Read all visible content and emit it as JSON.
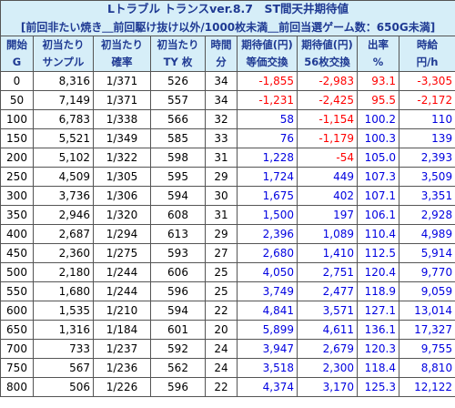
{
  "title": "Lトラブル トランスver.8.7　ST間天井期待値",
  "subtitle": "[前回非たい焼き＿前回駆け抜け以外/1000枚未満＿前回当選ゲーム数：650G未満]",
  "headers_row1": [
    "開始",
    "初当たり",
    "初当たり",
    "初当たり",
    "時間",
    "期待値(円)",
    "期待値(円)",
    "出率",
    "時給"
  ],
  "headers_row2": [
    "G",
    "サンプル",
    "確率",
    "TY 枚",
    "分",
    "等価交換",
    "56枚交換",
    "%",
    "円/h"
  ],
  "rows": [
    {
      "g": "0",
      "sample": "8,316",
      "prob": "1/371",
      "ty": "526",
      "min": "34",
      "eq": "-1,855",
      "ex56": "-2,983",
      "rate": "93.1",
      "hourly": "-3,305"
    },
    {
      "g": "50",
      "sample": "7,149",
      "prob": "1/371",
      "ty": "557",
      "min": "34",
      "eq": "-1,231",
      "ex56": "-2,425",
      "rate": "95.5",
      "hourly": "-2,172"
    },
    {
      "g": "100",
      "sample": "6,783",
      "prob": "1/338",
      "ty": "566",
      "min": "32",
      "eq": "58",
      "ex56": "-1,154",
      "rate": "100.2",
      "hourly": "110"
    },
    {
      "g": "150",
      "sample": "5,521",
      "prob": "1/349",
      "ty": "585",
      "min": "33",
      "eq": "76",
      "ex56": "-1,179",
      "rate": "100.3",
      "hourly": "139"
    },
    {
      "g": "200",
      "sample": "5,102",
      "prob": "1/322",
      "ty": "598",
      "min": "31",
      "eq": "1,228",
      "ex56": "-54",
      "rate": "105.0",
      "hourly": "2,393"
    },
    {
      "g": "250",
      "sample": "4,509",
      "prob": "1/305",
      "ty": "595",
      "min": "29",
      "eq": "1,724",
      "ex56": "449",
      "rate": "107.3",
      "hourly": "3,509"
    },
    {
      "g": "300",
      "sample": "3,736",
      "prob": "1/306",
      "ty": "594",
      "min": "30",
      "eq": "1,675",
      "ex56": "402",
      "rate": "107.1",
      "hourly": "3,351"
    },
    {
      "g": "350",
      "sample": "2,946",
      "prob": "1/320",
      "ty": "608",
      "min": "31",
      "eq": "1,500",
      "ex56": "197",
      "rate": "106.1",
      "hourly": "2,928"
    },
    {
      "g": "400",
      "sample": "2,687",
      "prob": "1/294",
      "ty": "613",
      "min": "29",
      "eq": "2,396",
      "ex56": "1,089",
      "rate": "110.4",
      "hourly": "4,989"
    },
    {
      "g": "450",
      "sample": "2,360",
      "prob": "1/275",
      "ty": "593",
      "min": "27",
      "eq": "2,680",
      "ex56": "1,410",
      "rate": "112.5",
      "hourly": "5,914"
    },
    {
      "g": "500",
      "sample": "2,180",
      "prob": "1/244",
      "ty": "606",
      "min": "25",
      "eq": "4,050",
      "ex56": "2,751",
      "rate": "120.4",
      "hourly": "9,770"
    },
    {
      "g": "550",
      "sample": "1,680",
      "prob": "1/244",
      "ty": "596",
      "min": "25",
      "eq": "3,749",
      "ex56": "2,477",
      "rate": "118.9",
      "hourly": "9,059"
    },
    {
      "g": "600",
      "sample": "1,535",
      "prob": "1/210",
      "ty": "594",
      "min": "22",
      "eq": "4,841",
      "ex56": "3,571",
      "rate": "127.1",
      "hourly": "13,014"
    },
    {
      "g": "650",
      "sample": "1,316",
      "prob": "1/184",
      "ty": "601",
      "min": "20",
      "eq": "5,899",
      "ex56": "4,611",
      "rate": "136.1",
      "hourly": "17,327"
    },
    {
      "g": "700",
      "sample": "733",
      "prob": "1/237",
      "ty": "592",
      "min": "24",
      "eq": "3,947",
      "ex56": "2,679",
      "rate": "120.3",
      "hourly": "9,755"
    },
    {
      "g": "750",
      "sample": "567",
      "prob": "1/236",
      "ty": "562",
      "min": "24",
      "eq": "3,518",
      "ex56": "2,300",
      "rate": "118.4",
      "hourly": "8,810"
    },
    {
      "g": "800",
      "sample": "506",
      "prob": "1/226",
      "ty": "596",
      "min": "22",
      "eq": "4,374",
      "ex56": "3,170",
      "rate": "125.3",
      "hourly": "12,122"
    }
  ],
  "colors": {
    "header_bg": "#d6eef8",
    "header_text": "#1f3a93",
    "negative": "#ff0000",
    "positive": "#0000e0",
    "alt_row": "#f2f2f2"
  }
}
